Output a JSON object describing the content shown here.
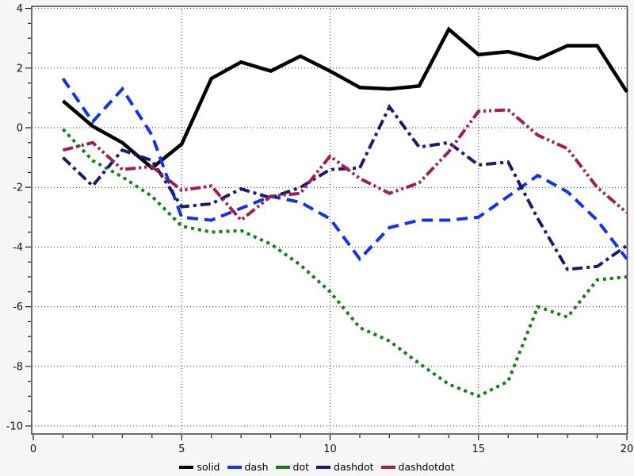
{
  "figure": {
    "background": "#f6f6f6",
    "plot_background": "#ffffff",
    "frame_color": "#4a4a4a",
    "grid_color": "#2a2a2a"
  },
  "chart_data": {
    "type": "line",
    "title": "",
    "xlabel": "",
    "ylabel": "",
    "x": [
      1,
      2,
      3,
      4,
      5,
      6,
      7,
      8,
      9,
      10,
      11,
      12,
      13,
      14,
      15,
      16,
      17,
      18,
      19,
      20
    ],
    "series": [
      {
        "name": "solid",
        "label": "solid",
        "color": "#000000",
        "style": "solid",
        "values": [
          0.9,
          0.05,
          -0.5,
          -1.35,
          -0.55,
          1.65,
          2.2,
          1.9,
          2.4,
          1.9,
          1.35,
          1.3,
          1.4,
          3.3,
          2.45,
          2.55,
          2.3,
          2.75,
          2.75,
          1.2
        ]
      },
      {
        "name": "dash",
        "label": "dash",
        "color": "#1133ee",
        "style": "dash",
        "values": [
          1.65,
          0.2,
          1.3,
          -0.25,
          -3.0,
          -3.1,
          -2.7,
          -2.3,
          -2.5,
          -3.05,
          -4.4,
          -3.35,
          -3.1,
          -3.1,
          -3.0,
          -2.3,
          -1.6,
          -2.15,
          -3.1,
          -4.4
        ]
      },
      {
        "name": "dot",
        "label": "dot",
        "color": "#158015",
        "style": "dot",
        "values": [
          -0.05,
          -1.1,
          -1.65,
          -2.3,
          -3.3,
          -3.5,
          -3.45,
          -3.9,
          -4.6,
          -5.5,
          -6.7,
          -7.15,
          -7.9,
          -8.6,
          -9.0,
          -8.5,
          -6.0,
          -6.35,
          -5.1,
          -5.0
        ]
      },
      {
        "name": "dashdot",
        "label": "dashdot",
        "color": "#1b1b70",
        "style": "dashdot",
        "values": [
          -1.0,
          -1.95,
          -0.75,
          -1.1,
          -2.65,
          -2.55,
          -2.05,
          -2.35,
          -2.0,
          -1.4,
          -1.35,
          0.7,
          -0.65,
          -0.5,
          -1.25,
          -1.15,
          -3.05,
          -4.75,
          -4.65,
          -3.95
        ]
      },
      {
        "name": "dashdotdot",
        "label": "dashdotdot",
        "color": "#a01e54",
        "style": "dashdotdot",
        "values": [
          -0.75,
          -0.5,
          -1.4,
          -1.3,
          -2.1,
          -1.95,
          -3.1,
          -2.3,
          -2.2,
          -0.95,
          -1.7,
          -2.2,
          -1.85,
          -0.8,
          0.55,
          0.6,
          -0.25,
          -0.7,
          -2.0,
          -2.85
        ]
      }
    ],
    "xlim": [
      0,
      20
    ],
    "ylim": [
      -10,
      4
    ],
    "x_major_ticks": [
      0,
      5,
      10,
      15,
      20
    ],
    "x_tick_labels": [
      "0",
      "5",
      "10",
      "15",
      "20"
    ],
    "y_major_ticks": [
      4,
      2,
      0,
      -2,
      -4,
      -6,
      -8,
      -10
    ],
    "y_tick_labels": [
      "4",
      "2",
      "0",
      "-2",
      "-4",
      "-6",
      "-8",
      "-10"
    ],
    "x_minor_step": 1,
    "y_minor_step": 0.5,
    "grid": "dotted lines at major ticks, both axes",
    "legend_position": "bottom-center",
    "legend": [
      "solid",
      "dash",
      "dot",
      "dashdot",
      "dashdotdot"
    ]
  }
}
